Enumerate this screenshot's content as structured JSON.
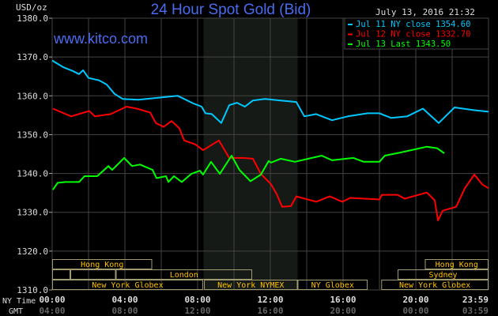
{
  "header": {
    "unit_label": "USD/oz",
    "title": "24 Hour Spot Gold (Bid)",
    "timestamp": "July 13, 2016 21:32",
    "watermark": "www.kitco.com"
  },
  "legend": {
    "items": [
      {
        "text": "Jul 11 NY close 1354.60",
        "color": "#00c8ff"
      },
      {
        "text": "Jul 12 NY close 1332.70",
        "color": "#ff0000"
      },
      {
        "text": "Jul 13 Last 1343.50",
        "color": "#00ff00"
      }
    ]
  },
  "axes": {
    "x_row_labels": [
      "NY Time",
      "GMT"
    ],
    "ny_ticks": [
      "00:00",
      "04:00",
      "08:00",
      "12:00",
      "16:00",
      "20:00",
      "23:59"
    ],
    "gmt_ticks": [
      "04:00",
      "08:00",
      "12:00",
      "16:00",
      "20:00",
      "00:00",
      "03:59"
    ]
  },
  "sessions": [
    {
      "label": "Hong Kong",
      "row": 0,
      "start": 0,
      "end": 5.5
    },
    {
      "label": "Hong Kong",
      "row": 0,
      "start": 20.5,
      "end": 24
    },
    {
      "label": "",
      "row": 1,
      "start": 0,
      "end": 1
    },
    {
      "label": "",
      "row": 1,
      "start": 1,
      "end": 3.5
    },
    {
      "label": "London",
      "row": 1,
      "start": 3.5,
      "end": 11
    },
    {
      "label": "Sydney",
      "row": 1,
      "start": 19,
      "end": 24
    },
    {
      "label": "New York Globex",
      "row": 2,
      "start": 0,
      "end": 8.3
    },
    {
      "label": "New York NYMEX",
      "row": 2,
      "start": 8.35,
      "end": 13.5
    },
    {
      "label": "NY Globex",
      "row": 2,
      "start": 13.5,
      "end": 17.35
    },
    {
      "label": "New York Globex",
      "row": 2,
      "start": 18.1,
      "end": 24
    }
  ],
  "colors": {
    "background": "#000000",
    "grid": "#444444",
    "shade": "#161a16",
    "session_text": "#ffc000",
    "session_border": "#a09a70",
    "title": "#4a6cf0"
  },
  "chart_data": {
    "type": "line",
    "title": "24 Hour Spot Gold (Bid)",
    "ylabel": "USD/oz",
    "xlabel": "NY Time",
    "xlim": [
      0,
      24
    ],
    "ylim": [
      1310,
      1380
    ],
    "yticks": [
      1310,
      1320,
      1330,
      1340,
      1350,
      1360,
      1370,
      1380
    ],
    "ytick_labels": [
      "1310.0",
      "1320.0",
      "1330.0",
      "1340.0",
      "1350.0",
      "1360.0",
      "1370.0",
      "1380.0"
    ],
    "grid": true,
    "shaded_range": [
      8.33,
      13.5
    ],
    "legend_position": "top-right",
    "series": [
      {
        "name": "Jul 11 NY close 1354.60",
        "color": "#00c8ff",
        "points": [
          [
            0,
            1369.1
          ],
          [
            0.6,
            1367.4
          ],
          [
            1.13,
            1366.4
          ],
          [
            1.48,
            1365.6
          ],
          [
            1.7,
            1366.6
          ],
          [
            2.0,
            1364.6
          ],
          [
            2.57,
            1364.0
          ],
          [
            3.0,
            1362.9
          ],
          [
            3.43,
            1360.5
          ],
          [
            3.87,
            1359.2
          ],
          [
            4.74,
            1359.0
          ],
          [
            6.04,
            1359.6
          ],
          [
            6.91,
            1360.0
          ],
          [
            7.78,
            1358.0
          ],
          [
            8.22,
            1357.2
          ],
          [
            8.43,
            1355.5
          ],
          [
            8.78,
            1355.3
          ],
          [
            9.3,
            1353.0
          ],
          [
            9.74,
            1357.6
          ],
          [
            10.17,
            1358.2
          ],
          [
            10.6,
            1357.2
          ],
          [
            11.04,
            1358.8
          ],
          [
            11.7,
            1359.2
          ],
          [
            12.57,
            1358.8
          ],
          [
            13.43,
            1358.4
          ],
          [
            13.87,
            1354.7
          ],
          [
            14.52,
            1355.3
          ],
          [
            15.39,
            1353.7
          ],
          [
            16.26,
            1354.7
          ],
          [
            17.35,
            1355.5
          ],
          [
            18.0,
            1355.5
          ],
          [
            18.65,
            1354.3
          ],
          [
            19.52,
            1354.7
          ],
          [
            20.39,
            1356.7
          ],
          [
            21.26,
            1353.0
          ],
          [
            22.13,
            1357.0
          ],
          [
            23.22,
            1356.3
          ],
          [
            24,
            1355.9
          ]
        ]
      },
      {
        "name": "Jul 12 NY close 1332.70",
        "color": "#ff0000",
        "points": [
          [
            0.04,
            1356.7
          ],
          [
            1.04,
            1354.7
          ],
          [
            2.04,
            1356.1
          ],
          [
            2.35,
            1354.7
          ],
          [
            3.22,
            1355.3
          ],
          [
            4.09,
            1357.2
          ],
          [
            4.65,
            1356.7
          ],
          [
            5.39,
            1355.7
          ],
          [
            5.7,
            1353.0
          ],
          [
            6.13,
            1352.0
          ],
          [
            6.57,
            1353.5
          ],
          [
            7.0,
            1351.6
          ],
          [
            7.26,
            1348.5
          ],
          [
            7.87,
            1347.5
          ],
          [
            8.3,
            1346.0
          ],
          [
            9.17,
            1348.5
          ],
          [
            9.74,
            1344.0
          ],
          [
            10.48,
            1344.0
          ],
          [
            11.04,
            1343.8
          ],
          [
            11.48,
            1339.9
          ],
          [
            12.04,
            1337.2
          ],
          [
            12.35,
            1334.7
          ],
          [
            12.65,
            1331.4
          ],
          [
            13.13,
            1331.6
          ],
          [
            13.43,
            1334.1
          ],
          [
            14.52,
            1332.7
          ],
          [
            15.26,
            1334.1
          ],
          [
            15.96,
            1332.7
          ],
          [
            16.39,
            1333.7
          ],
          [
            18.0,
            1333.3
          ],
          [
            18.13,
            1334.5
          ],
          [
            19.0,
            1334.5
          ],
          [
            19.39,
            1333.5
          ],
          [
            20.61,
            1335.1
          ],
          [
            21.04,
            1333.1
          ],
          [
            21.22,
            1327.9
          ],
          [
            21.48,
            1330.4
          ],
          [
            22.22,
            1331.4
          ],
          [
            22.7,
            1336.2
          ],
          [
            23.22,
            1339.7
          ],
          [
            23.65,
            1337.2
          ],
          [
            24,
            1336.2
          ]
        ]
      },
      {
        "name": "Jul 13 Last 1343.50",
        "color": "#00ff00",
        "points": [
          [
            0.04,
            1335.8
          ],
          [
            0.3,
            1337.6
          ],
          [
            0.74,
            1337.8
          ],
          [
            1.48,
            1337.8
          ],
          [
            1.78,
            1339.3
          ],
          [
            2.48,
            1339.3
          ],
          [
            3.09,
            1341.9
          ],
          [
            3.3,
            1340.9
          ],
          [
            3.96,
            1344.0
          ],
          [
            4.39,
            1341.9
          ],
          [
            4.83,
            1342.3
          ],
          [
            5.52,
            1340.9
          ],
          [
            5.74,
            1338.8
          ],
          [
            6.26,
            1339.3
          ],
          [
            6.39,
            1337.8
          ],
          [
            6.7,
            1339.3
          ],
          [
            7.13,
            1337.8
          ],
          [
            7.65,
            1339.9
          ],
          [
            8.13,
            1340.7
          ],
          [
            8.3,
            1339.7
          ],
          [
            8.74,
            1343.0
          ],
          [
            9.22,
            1339.9
          ],
          [
            9.87,
            1344.6
          ],
          [
            10.3,
            1340.9
          ],
          [
            10.91,
            1338.0
          ],
          [
            11.48,
            1339.7
          ],
          [
            11.91,
            1343.2
          ],
          [
            12.04,
            1342.8
          ],
          [
            12.57,
            1343.8
          ],
          [
            13.35,
            1343.0
          ],
          [
            14.83,
            1344.6
          ],
          [
            15.39,
            1343.4
          ],
          [
            16.57,
            1344.0
          ],
          [
            17.13,
            1343.0
          ],
          [
            18.0,
            1343.0
          ],
          [
            18.3,
            1344.6
          ],
          [
            19.17,
            1345.4
          ],
          [
            19.74,
            1346.0
          ],
          [
            20.61,
            1346.9
          ],
          [
            21.17,
            1346.5
          ],
          [
            21.57,
            1345.2
          ]
        ]
      }
    ]
  }
}
